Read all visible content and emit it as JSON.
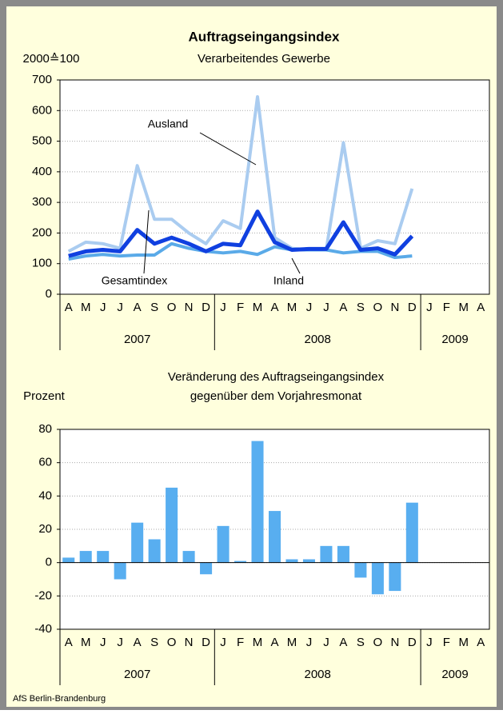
{
  "chart_data": [
    {
      "type": "line",
      "title": "Auftragseingangsindex",
      "subtitle": "Verarbeitendes Gewerbe",
      "y_label": "2000≙100",
      "categories": [
        "A",
        "M",
        "J",
        "J",
        "A",
        "S",
        "O",
        "N",
        "D",
        "J",
        "F",
        "M",
        "A",
        "M",
        "J",
        "J",
        "A",
        "S",
        "O",
        "N",
        "D",
        "J",
        "F",
        "M",
        "A"
      ],
      "year_groups": [
        {
          "label": "2007",
          "size": 9
        },
        {
          "label": "2008",
          "size": 12
        },
        {
          "label": "2009",
          "size": 4
        }
      ],
      "ylim": [
        0,
        700
      ],
      "yticks": [
        0,
        100,
        200,
        300,
        400,
        500,
        600,
        700
      ],
      "grid": true,
      "series": [
        {
          "name": "Ausland",
          "color": "#aaccf0",
          "values": [
            140,
            170,
            165,
            150,
            420,
            245,
            245,
            200,
            165,
            240,
            215,
            645,
            185,
            150,
            145,
            145,
            495,
            150,
            175,
            165,
            345,
            null,
            null,
            null,
            null
          ]
        },
        {
          "name": "Inland",
          "color": "#5aaae8",
          "values": [
            115,
            125,
            130,
            125,
            128,
            128,
            165,
            150,
            140,
            135,
            140,
            130,
            155,
            145,
            145,
            145,
            135,
            140,
            140,
            120,
            125,
            null,
            null,
            null,
            null
          ]
        },
        {
          "name": "Gesamtindex",
          "color": "#1040e0",
          "values": [
            125,
            140,
            145,
            140,
            210,
            165,
            185,
            165,
            140,
            165,
            160,
            270,
            170,
            145,
            148,
            148,
            235,
            145,
            150,
            130,
            190,
            null,
            null,
            null,
            null
          ]
        }
      ]
    },
    {
      "type": "bar",
      "title": "Veränderung des Auftragseingangsindex",
      "subtitle": "gegenüber dem Vorjahresmonat",
      "y_label": "Prozent",
      "categories": [
        "A",
        "M",
        "J",
        "J",
        "A",
        "S",
        "O",
        "N",
        "D",
        "J",
        "F",
        "M",
        "A",
        "M",
        "J",
        "J",
        "A",
        "S",
        "O",
        "N",
        "D",
        "J",
        "F",
        "M",
        "A"
      ],
      "year_groups": [
        {
          "label": "2007",
          "size": 9
        },
        {
          "label": "2008",
          "size": 12
        },
        {
          "label": "2009",
          "size": 4
        }
      ],
      "ylim": [
        -40,
        80
      ],
      "yticks": [
        -40,
        -20,
        0,
        20,
        40,
        60,
        80
      ],
      "grid": true,
      "color": "#58aef0",
      "values": [
        3,
        7,
        7,
        -10,
        24,
        14,
        45,
        7,
        -7,
        22,
        1,
        73,
        31,
        2,
        2,
        10,
        10,
        -9,
        -19,
        -17,
        36,
        null,
        null,
        null,
        null
      ]
    }
  ],
  "footer": "AfS Berlin-Brandenburg"
}
